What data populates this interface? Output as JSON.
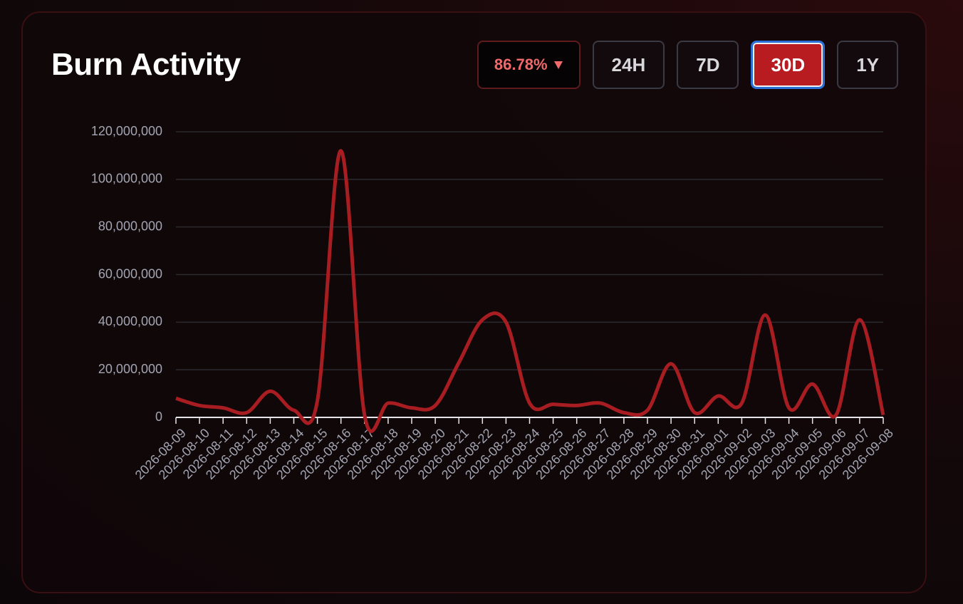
{
  "header": {
    "title": "Burn Activity",
    "change": "86.78%",
    "ranges": [
      "24H",
      "7D",
      "30D",
      "1Y"
    ],
    "active_range": "30D"
  },
  "chart_data": {
    "type": "line",
    "categories": [
      "2026-08-09",
      "2026-08-10",
      "2026-08-11",
      "2026-08-12",
      "2026-08-13",
      "2026-08-14",
      "2026-08-15",
      "2026-08-16",
      "2026-08-17",
      "2026-08-18",
      "2026-08-19",
      "2026-08-20",
      "2026-08-21",
      "2026-08-22",
      "2026-08-23",
      "2026-08-24",
      "2026-08-25",
      "2026-08-26",
      "2026-08-27",
      "2026-08-28",
      "2026-08-29",
      "2026-08-30",
      "2026-08-31",
      "2026-09-01",
      "2026-09-02",
      "2026-09-03",
      "2026-09-04",
      "2026-09-05",
      "2026-09-06",
      "2026-09-07",
      "2026-09-08"
    ],
    "values": [
      8000000,
      5000000,
      4000000,
      2000000,
      11000000,
      3000000,
      7000000,
      112000000,
      1000000,
      6000000,
      4000000,
      5000000,
      23000000,
      41000000,
      40000000,
      6000000,
      5500000,
      5000000,
      6000000,
      2000000,
      3000000,
      22500000,
      2000000,
      9000000,
      6000000,
      43000000,
      4000000,
      14000000,
      1000000,
      41000000,
      1000000
    ],
    "color": "#a81d21",
    "ylim": [
      0,
      120000000
    ],
    "yticks": [
      0,
      {
        "value": 20000000,
        "label": "20,000,000"
      },
      {
        "value": 40000000,
        "label": "40,000,000"
      },
      {
        "value": 60000000,
        "label": "60,000,000"
      },
      {
        "value": 80000000,
        "label": "80,000,000"
      },
      {
        "value": 100000000,
        "label": "100,000,000"
      },
      {
        "value": 120000000,
        "label": "120,000,000"
      }
    ],
    "grid": true
  }
}
